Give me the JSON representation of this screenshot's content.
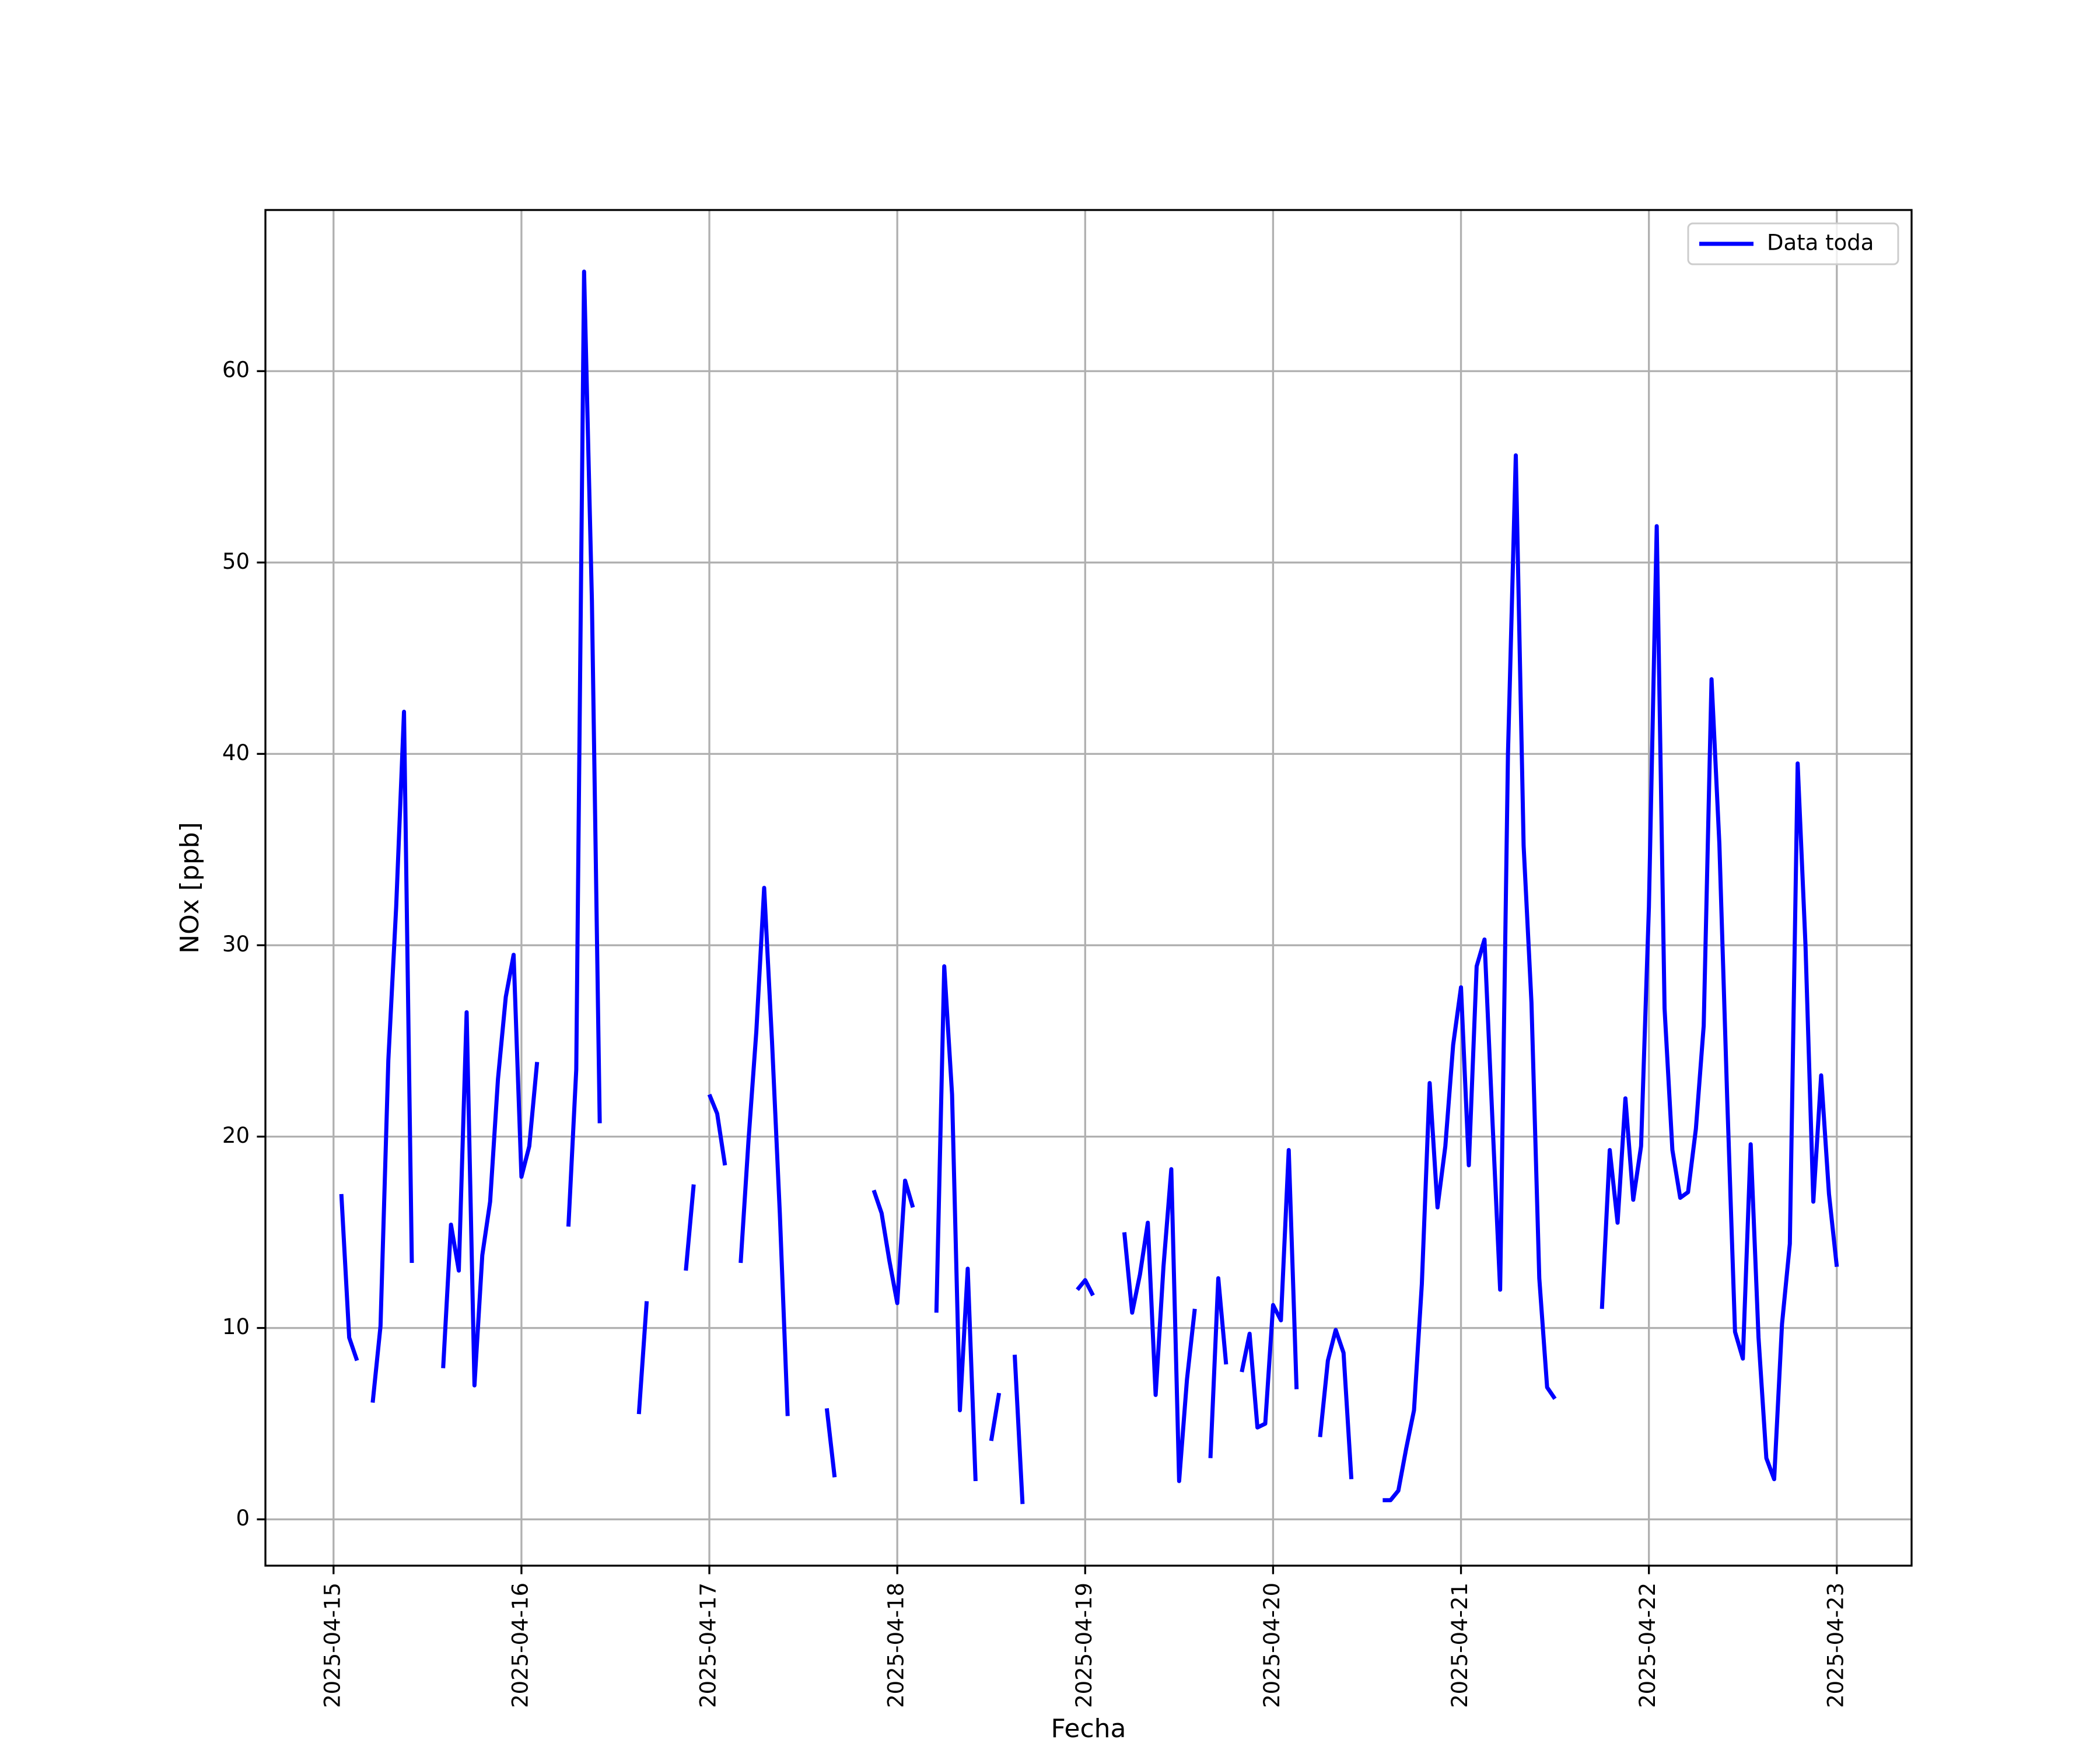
{
  "chart_data": {
    "type": "line",
    "xlabel": "Fecha",
    "ylabel": "NOx [ppb]",
    "xlim": [
      "2025-04-14 15:18",
      "2025-04-23 09:33"
    ],
    "xticks": [
      "2025-04-15",
      "2025-04-16",
      "2025-04-17",
      "2025-04-18",
      "2025-04-19",
      "2025-04-20",
      "2025-04-21",
      "2025-04-22",
      "2025-04-23"
    ],
    "ylim": [
      -2.42,
      68.42
    ],
    "yticks": [
      0,
      10,
      20,
      30,
      40,
      50,
      60
    ],
    "grid": true,
    "legend": "upper right",
    "x": [
      "2025-04-15 01:00",
      "2025-04-15 02:00",
      "2025-04-15 03:00",
      "2025-04-15 04:00",
      "2025-04-15 05:00",
      "2025-04-15 06:00",
      "2025-04-15 07:00",
      "2025-04-15 08:00",
      "2025-04-15 09:00",
      "2025-04-15 10:00",
      "2025-04-15 11:00",
      "2025-04-15 12:00",
      "2025-04-15 13:00",
      "2025-04-15 14:00",
      "2025-04-15 15:00",
      "2025-04-15 16:00",
      "2025-04-15 17:00",
      "2025-04-15 18:00",
      "2025-04-15 19:00",
      "2025-04-15 20:00",
      "2025-04-15 21:00",
      "2025-04-15 22:00",
      "2025-04-15 23:00",
      "2025-04-16 00:00",
      "2025-04-16 01:00",
      "2025-04-16 02:00",
      "2025-04-16 03:00",
      "2025-04-16 04:00",
      "2025-04-16 05:00",
      "2025-04-16 06:00",
      "2025-04-16 07:00",
      "2025-04-16 08:00",
      "2025-04-16 09:00",
      "2025-04-16 10:00",
      "2025-04-16 11:00",
      "2025-04-16 12:00",
      "2025-04-16 13:00",
      "2025-04-16 14:00",
      "2025-04-16 15:00",
      "2025-04-16 16:00",
      "2025-04-16 17:00",
      "2025-04-16 18:00",
      "2025-04-16 19:00",
      "2025-04-16 20:00",
      "2025-04-16 21:00",
      "2025-04-16 22:00",
      "2025-04-16 23:00",
      "2025-04-17 00:00",
      "2025-04-17 01:00",
      "2025-04-17 02:00",
      "2025-04-17 03:00",
      "2025-04-17 04:00",
      "2025-04-17 05:00",
      "2025-04-17 06:00",
      "2025-04-17 07:00",
      "2025-04-17 08:00",
      "2025-04-17 09:00",
      "2025-04-17 10:00",
      "2025-04-17 11:00",
      "2025-04-17 12:00",
      "2025-04-17 13:00",
      "2025-04-17 14:00",
      "2025-04-17 15:00",
      "2025-04-17 16:00",
      "2025-04-17 17:00",
      "2025-04-17 18:00",
      "2025-04-17 19:00",
      "2025-04-17 20:00",
      "2025-04-17 21:00",
      "2025-04-17 22:00",
      "2025-04-17 23:00",
      "2025-04-18 00:00",
      "2025-04-18 01:00",
      "2025-04-18 02:00",
      "2025-04-18 03:00",
      "2025-04-18 04:00",
      "2025-04-18 05:00",
      "2025-04-18 06:00",
      "2025-04-18 07:00",
      "2025-04-18 08:00",
      "2025-04-18 09:00",
      "2025-04-18 10:00",
      "2025-04-18 11:00",
      "2025-04-18 12:00",
      "2025-04-18 13:00",
      "2025-04-18 14:00",
      "2025-04-18 15:00",
      "2025-04-18 16:00",
      "2025-04-18 17:00",
      "2025-04-18 18:00",
      "2025-04-18 19:00",
      "2025-04-18 20:00",
      "2025-04-18 21:00",
      "2025-04-18 22:00",
      "2025-04-18 23:00",
      "2025-04-19 00:00",
      "2025-04-19 01:00",
      "2025-04-19 02:00",
      "2025-04-19 03:00",
      "2025-04-19 04:00",
      "2025-04-19 05:00",
      "2025-04-19 06:00",
      "2025-04-19 07:00",
      "2025-04-19 08:00",
      "2025-04-19 09:00",
      "2025-04-19 10:00",
      "2025-04-19 11:00",
      "2025-04-19 12:00",
      "2025-04-19 13:00",
      "2025-04-19 14:00",
      "2025-04-19 15:00",
      "2025-04-19 16:00",
      "2025-04-19 17:00",
      "2025-04-19 18:00",
      "2025-04-19 19:00",
      "2025-04-19 20:00",
      "2025-04-19 21:00",
      "2025-04-19 22:00",
      "2025-04-19 23:00",
      "2025-04-20 00:00",
      "2025-04-20 01:00",
      "2025-04-20 02:00",
      "2025-04-20 03:00",
      "2025-04-20 04:00",
      "2025-04-20 05:00",
      "2025-04-20 06:00",
      "2025-04-20 07:00",
      "2025-04-20 08:00",
      "2025-04-20 09:00",
      "2025-04-20 10:00",
      "2025-04-20 11:00",
      "2025-04-20 12:00",
      "2025-04-20 13:00",
      "2025-04-20 14:00",
      "2025-04-20 15:00",
      "2025-04-20 16:00",
      "2025-04-20 17:00",
      "2025-04-20 18:00",
      "2025-04-20 19:00",
      "2025-04-20 20:00",
      "2025-04-20 21:00",
      "2025-04-20 22:00",
      "2025-04-20 23:00",
      "2025-04-21 00:00",
      "2025-04-21 01:00",
      "2025-04-21 02:00",
      "2025-04-21 03:00",
      "2025-04-21 04:00",
      "2025-04-21 05:00",
      "2025-04-21 06:00",
      "2025-04-21 07:00",
      "2025-04-21 08:00",
      "2025-04-21 09:00",
      "2025-04-21 10:00",
      "2025-04-21 11:00",
      "2025-04-21 12:00",
      "2025-04-21 13:00",
      "2025-04-21 14:00",
      "2025-04-21 15:00",
      "2025-04-21 16:00",
      "2025-04-21 17:00",
      "2025-04-21 18:00",
      "2025-04-21 19:00",
      "2025-04-21 20:00",
      "2025-04-21 21:00",
      "2025-04-21 22:00",
      "2025-04-21 23:00",
      "2025-04-22 00:00",
      "2025-04-22 01:00",
      "2025-04-22 02:00",
      "2025-04-22 03:00",
      "2025-04-22 04:00",
      "2025-04-22 05:00",
      "2025-04-22 06:00",
      "2025-04-22 07:00",
      "2025-04-22 08:00",
      "2025-04-22 09:00",
      "2025-04-22 10:00",
      "2025-04-22 11:00",
      "2025-04-22 12:00",
      "2025-04-22 13:00",
      "2025-04-22 14:00",
      "2025-04-22 15:00",
      "2025-04-22 16:00",
      "2025-04-22 17:00",
      "2025-04-22 18:00",
      "2025-04-22 19:00",
      "2025-04-22 20:00",
      "2025-04-22 21:00",
      "2025-04-22 22:00",
      "2025-04-22 23:00",
      "2025-04-23 00:00"
    ],
    "series": [
      {
        "name": "Data toda",
        "color": "#0000ff",
        "values": [
          17.0,
          9.5,
          8.3,
          null,
          6.1,
          10.1,
          24,
          32,
          42.2,
          13.4,
          null,
          null,
          null,
          7.9,
          15.4,
          13.0,
          26.5,
          7.0,
          13.8,
          16.6,
          23.0,
          27.3,
          29.5,
          17.9,
          19.5,
          23.9,
          null,
          null,
          null,
          15.3,
          23.5,
          65.2,
          48,
          20.7,
          null,
          null,
          null,
          null,
          5.5,
          11.4,
          null,
          null,
          null,
          null,
          13.0,
          17.5,
          null,
          22.2,
          21.2,
          18.5,
          null,
          13.4,
          19.8,
          25.5,
          33.0,
          25,
          16,
          5.4,
          null,
          null,
          null,
          null,
          5.8,
          2.2,
          null,
          null,
          null,
          null,
          17.2,
          16.0,
          13.5,
          11.3,
          17.7,
          16.3,
          null,
          null,
          10.8,
          28.9,
          22.2,
          5.7,
          13.1,
          2.0,
          null,
          4.1,
          6.6,
          null,
          8.6,
          0.8,
          null,
          null,
          null,
          null,
          null,
          null,
          12.0,
          12.5,
          11.7,
          null,
          null,
          null,
          15.0,
          10.8,
          12.8,
          15.5,
          6.5,
          13.2,
          18.3,
          2.0,
          7.3,
          11.0,
          null,
          3.2,
          12.6,
          8.1,
          null,
          7.7,
          9.7,
          4.8,
          5.0,
          11.2,
          10.4,
          19.3,
          6.8,
          null,
          null,
          4.3,
          8.3,
          9.9,
          8.7,
          2.1,
          null,
          null,
          null,
          1.0,
          1.0,
          1.5,
          3.7,
          5.7,
          12.3,
          22.8,
          16.3,
          19.5,
          24.8,
          27.8,
          18.5,
          28.9,
          30.3,
          21,
          12.0,
          40,
          55.6,
          35.2,
          27,
          12.6,
          6.9,
          6.3,
          null,
          null,
          null,
          null,
          null,
          11.0,
          19.3,
          15.5,
          22.0,
          16.7,
          19.5,
          32,
          51.9,
          26.7,
          19.3,
          16.8,
          17.1,
          20.4,
          25.8,
          43.9,
          35.3,
          22,
          9.8,
          8.4,
          19.6,
          9.5,
          3.2,
          2.1,
          10.2,
          14.4,
          39.5,
          30,
          16.6,
          23.2,
          17.0,
          13.2
        ]
      }
    ]
  }
}
